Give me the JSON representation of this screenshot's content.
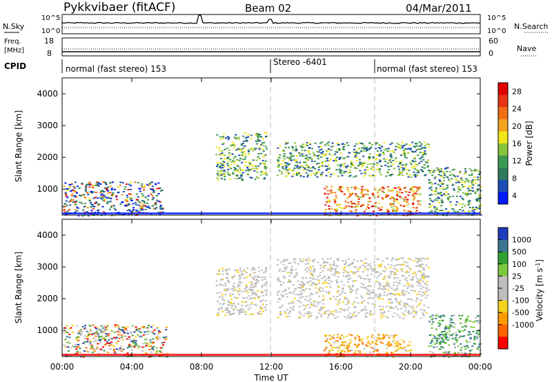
{
  "header": {
    "station": "Pykkvibaer (fitACF)",
    "beam": "Beam 02",
    "date": "04/Mar/2011"
  },
  "panels": {
    "nsky": {
      "label": "N.Sky",
      "left_ticks": [
        "10^5",
        "10^0"
      ],
      "right_ticks": [
        "10^5",
        "10^0"
      ],
      "right_label": "N.Search"
    },
    "freq": {
      "label_line1": "Freq.",
      "label_line2": "[MHz]",
      "left_ticks": [
        "18",
        "8"
      ],
      "right_ticks": [
        "60",
        "0"
      ],
      "right_label": "Nave"
    },
    "cpid": {
      "label": "CPID",
      "modes": [
        {
          "name": "normal (fast stereo) 153",
          "start": 0
        },
        {
          "name": "Stereo -6401",
          "start": 12
        },
        {
          "name": "normal (fast stereo) 153",
          "start": 18
        }
      ]
    }
  },
  "colors": {
    "power": [
      "#0019ff",
      "#1e4bb4",
      "#2e7a5a",
      "#3c9b50",
      "#86c43a",
      "#f0e619",
      "#f2a21c",
      "#ef6e14",
      "#e83214",
      "#e10000"
    ],
    "velocity": [
      "#ff0000",
      "#ff6400",
      "#ff9b00",
      "#f5d21e",
      "#bebebe",
      "#bebebe",
      "#7ac83c",
      "#33a033",
      "#3c7896",
      "#1e3cbe"
    ]
  },
  "chart_data": [
    {
      "type": "heatmap",
      "name": "power",
      "xlabel": "Time UT",
      "ylabel": "Slant Range [km]",
      "xlim": [
        0,
        24
      ],
      "ylim": [
        180,
        4500
      ],
      "x_tick_labels": [
        "00:00",
        "04:00",
        "08:00",
        "12:00",
        "16:00",
        "20:00",
        "00:00"
      ],
      "y_ticks": [
        1000,
        2000,
        3000,
        4000
      ],
      "colorbar": {
        "label": "Power [dB]",
        "ticks": [
          "28",
          "24",
          "20",
          "16",
          "12",
          "8",
          "4"
        ],
        "range": [
          0,
          30
        ]
      },
      "echo_regions": [
        {
          "x": [
            0.0,
            5.8
          ],
          "y": [
            180,
            1250
          ],
          "level": "weak-strong"
        },
        {
          "x": [
            8.8,
            11.7
          ],
          "y": [
            1300,
            2800
          ],
          "level": "moderate"
        },
        {
          "x": [
            12.3,
            21.0
          ],
          "y": [
            1400,
            2500
          ],
          "level": "moderate"
        },
        {
          "x": [
            15.0,
            20.5
          ],
          "y": [
            180,
            1100
          ],
          "level": "strong"
        },
        {
          "x": [
            21.0,
            24.0
          ],
          "y": [
            180,
            1700
          ],
          "level": "moderate"
        }
      ]
    },
    {
      "type": "heatmap",
      "name": "velocity",
      "xlabel": "Time UT",
      "ylabel": "Slant Range [km]",
      "xlim": [
        0,
        24
      ],
      "ylim": [
        180,
        4500
      ],
      "x_tick_labels": [
        "00:00",
        "04:00",
        "08:00",
        "12:00",
        "16:00",
        "20:00",
        "00:00"
      ],
      "y_ticks": [
        1000,
        2000,
        3000,
        4000
      ],
      "colorbar": {
        "label": "Velocity [m s^-1]",
        "ticks": [
          "1000",
          "500",
          "100",
          "25",
          "-25",
          "-100",
          "-500",
          "-1000"
        ],
        "range": [
          -1000,
          1000
        ]
      },
      "echo_regions": [
        {
          "x": [
            0.0,
            6.0
          ],
          "y": [
            180,
            1200
          ],
          "level": "mixed"
        },
        {
          "x": [
            8.8,
            11.7
          ],
          "y": [
            1500,
            3000
          ],
          "level": "ground-scatter"
        },
        {
          "x": [
            12.3,
            21.0
          ],
          "y": [
            1400,
            3300
          ],
          "level": "ground-scatter"
        },
        {
          "x": [
            15.0,
            20.0
          ],
          "y": [
            180,
            900
          ],
          "level": "negative"
        },
        {
          "x": [
            21.0,
            24.0
          ],
          "y": [
            180,
            1500
          ],
          "level": "positive"
        }
      ]
    }
  ]
}
